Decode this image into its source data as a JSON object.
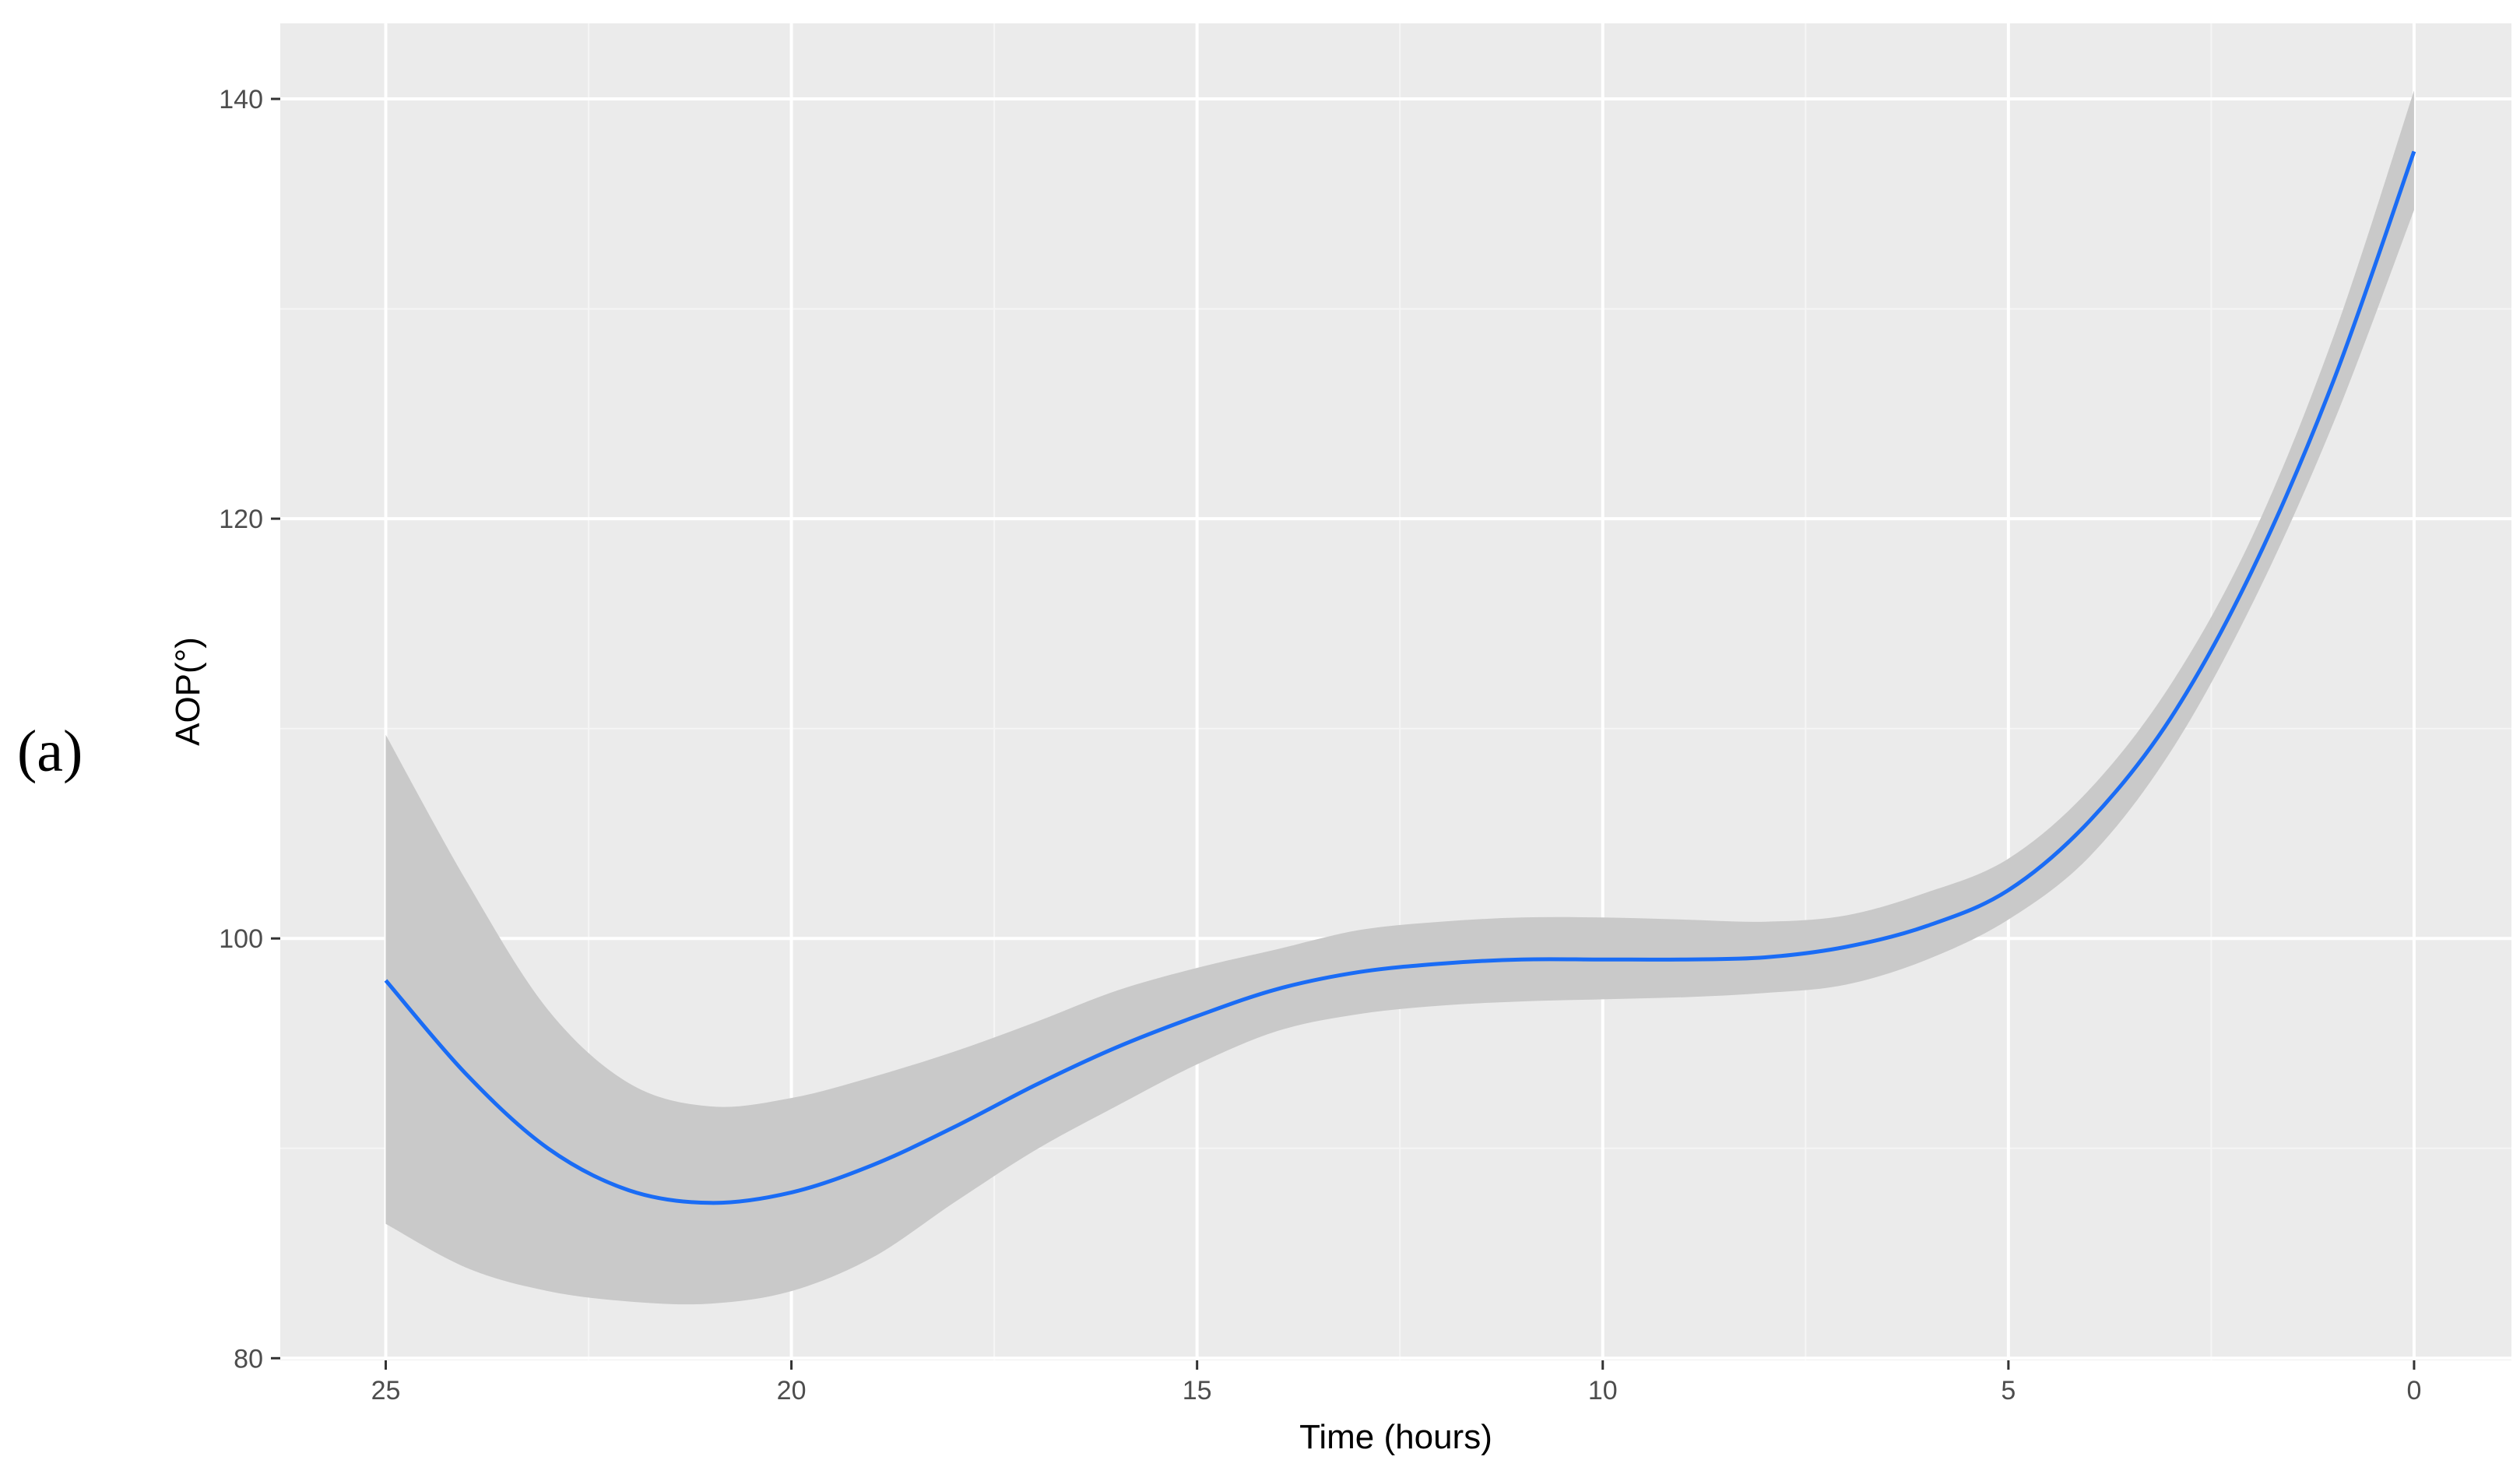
{
  "panel_label": "(a)",
  "colors": {
    "panel_background": "#ebebeb",
    "grid_major": "#ffffff",
    "grid_minor": "#f5f5f5",
    "line": "#1a6cf5",
    "ribbon": "#c9c9c9",
    "tick_text": "#4d4d4d"
  },
  "chart_data": {
    "type": "line",
    "title": "",
    "xlabel": "Time (hours)",
    "ylabel": "AOP(°)",
    "x_reversed": true,
    "xlim": [
      26.3,
      -1.2
    ],
    "ylim": [
      79.9,
      143.6
    ],
    "x_ticks": [
      25,
      20,
      15,
      10,
      5,
      0
    ],
    "x_tick_labels": [
      "25",
      "20",
      "15",
      "10",
      "5",
      "0"
    ],
    "y_ticks": [
      80,
      100,
      120,
      140
    ],
    "y_tick_labels": [
      "80",
      "100",
      "120",
      "140"
    ],
    "x_minor_ticks": [
      22.5,
      17.5,
      12.5,
      7.5,
      2.5
    ],
    "y_minor_ticks": [
      90,
      110,
      130
    ],
    "grid": true,
    "legend": false,
    "series": [
      {
        "style": "smooth fit with confidence band",
        "x": [
          25,
          24,
          23,
          22,
          21,
          20,
          19,
          18,
          17,
          16,
          15,
          14,
          13,
          12,
          11,
          10,
          9,
          8,
          7,
          6,
          5,
          4,
          3,
          2,
          1,
          0
        ],
        "y": [
          98.0,
          93.5,
          90.0,
          88.0,
          87.4,
          87.9,
          89.2,
          91.0,
          93.0,
          94.8,
          96.3,
          97.6,
          98.4,
          98.8,
          99.0,
          99.0,
          99.0,
          99.1,
          99.6,
          100.6,
          102.3,
          105.6,
          110.5,
          117.5,
          126.5,
          137.5
        ],
        "lower": [
          86.4,
          84.3,
          83.2,
          82.7,
          82.6,
          83.2,
          84.8,
          87.4,
          89.9,
          92.0,
          94.0,
          95.6,
          96.4,
          96.8,
          97.0,
          97.1,
          97.2,
          97.4,
          97.8,
          99.0,
          100.9,
          103.9,
          108.9,
          115.9,
          124.5,
          134.7
        ],
        "upper": [
          109.7,
          102.7,
          96.6,
          93.1,
          92.0,
          92.4,
          93.4,
          94.6,
          96.0,
          97.5,
          98.6,
          99.5,
          100.4,
          100.8,
          101.0,
          101.0,
          100.9,
          100.8,
          101.1,
          102.2,
          103.8,
          107.1,
          112.1,
          119.1,
          128.6,
          140.4
        ]
      }
    ]
  }
}
